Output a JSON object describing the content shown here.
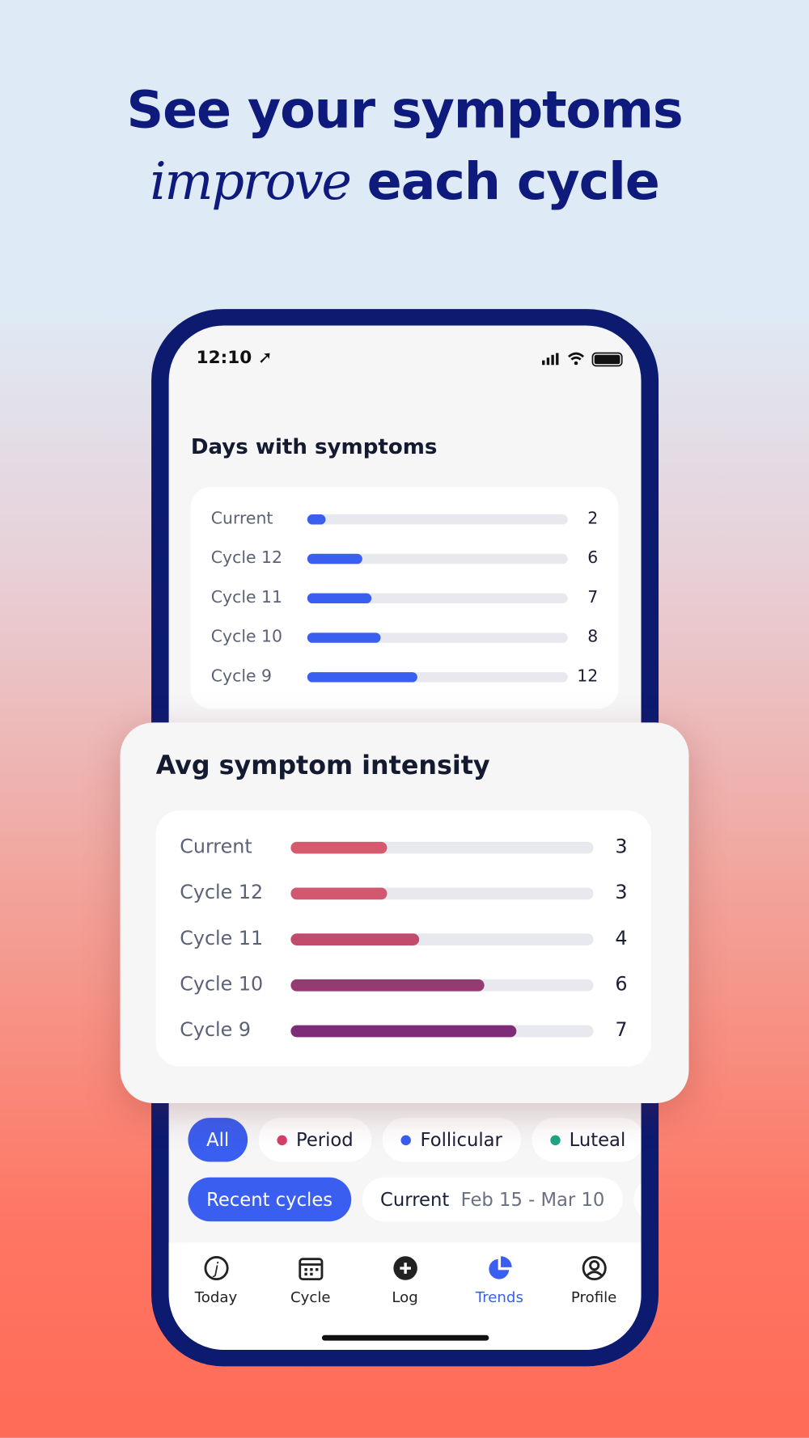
{
  "headline": {
    "line1": "See your symptoms",
    "emphasis": "improve",
    "line2_rest": "each cycle"
  },
  "status_bar": {
    "time": "12:10"
  },
  "days_with_symptoms": {
    "title": "Days with symptoms",
    "color": "#3a5ef0",
    "rows": [
      {
        "label": "Current",
        "value": 2
      },
      {
        "label": "Cycle 12",
        "value": 6
      },
      {
        "label": "Cycle 11",
        "value": 7
      },
      {
        "label": "Cycle 10",
        "value": 8
      },
      {
        "label": "Cycle 9",
        "value": 12
      }
    ]
  },
  "avg_symptom_intensity": {
    "title": "Avg symptom intensity",
    "rows": [
      {
        "label": "Current",
        "value": 3,
        "color": "#d65a6d"
      },
      {
        "label": "Cycle 12",
        "value": 3,
        "color": "#d2586f"
      },
      {
        "label": "Cycle 11",
        "value": 4,
        "color": "#c24a6d"
      },
      {
        "label": "Cycle 10",
        "value": 6,
        "color": "#963a72"
      },
      {
        "label": "Cycle 9",
        "value": 7,
        "color": "#7e2b78"
      }
    ]
  },
  "phase_filters": [
    {
      "label": "All"
    },
    {
      "label": "Period",
      "color": "#d6406a"
    },
    {
      "label": "Follicular",
      "color": "#3a5ef0"
    },
    {
      "label": "Luteal",
      "color": "#1fa584"
    }
  ],
  "cycle_filters": {
    "selected": "Recent cycles",
    "current_label": "Current",
    "current_range": "Feb 15 - Mar 10"
  },
  "tabs": [
    "Today",
    "Cycle",
    "Log",
    "Trends",
    "Profile"
  ]
}
